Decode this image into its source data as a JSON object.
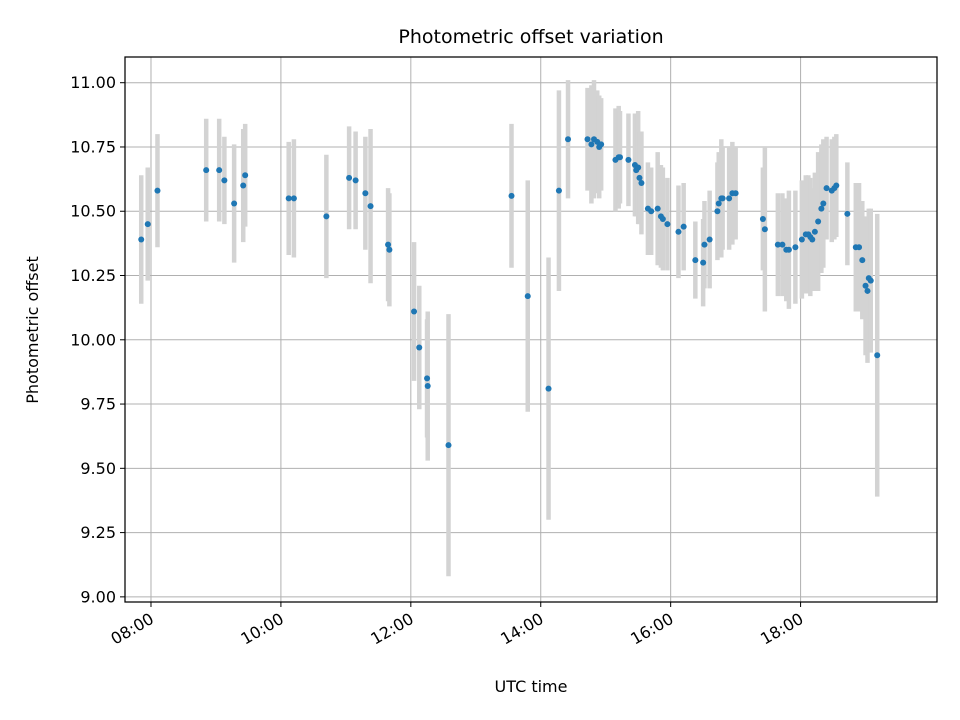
{
  "chart_data": {
    "type": "scatter",
    "title": "Photometric offset variation",
    "xlabel": "UTC time",
    "ylabel": "Photometric offset",
    "x_unit": "hours UTC",
    "xlim": [
      7.6,
      20.1
    ],
    "ylim": [
      8.98,
      11.1
    ],
    "x_ticks": [
      {
        "value": 8,
        "label": "08:00"
      },
      {
        "value": 10,
        "label": "10:00"
      },
      {
        "value": 12,
        "label": "12:00"
      },
      {
        "value": 14,
        "label": "14:00"
      },
      {
        "value": 16,
        "label": "16:00"
      },
      {
        "value": 18,
        "label": "18:00"
      }
    ],
    "y_ticks": [
      {
        "value": 9.0,
        "label": "9.00"
      },
      {
        "value": 9.25,
        "label": "9.25"
      },
      {
        "value": 9.5,
        "label": "9.50"
      },
      {
        "value": 9.75,
        "label": "9.75"
      },
      {
        "value": 10.0,
        "label": "10.00"
      },
      {
        "value": 10.25,
        "label": "10.25"
      },
      {
        "value": 10.5,
        "label": "10.50"
      },
      {
        "value": 10.75,
        "label": "10.75"
      },
      {
        "value": 11.0,
        "label": "11.00"
      }
    ],
    "grid": true,
    "colors": {
      "point": "#1f77b4",
      "errorbar": "#d3d3d3",
      "grid": "#b0b0b0",
      "axis": "#000000"
    },
    "series": [
      {
        "points": [
          [
            7.85,
            10.39,
            0.25
          ],
          [
            7.95,
            10.45,
            0.22
          ],
          [
            8.1,
            10.58,
            0.22
          ],
          [
            8.85,
            10.66,
            0.2
          ],
          [
            9.05,
            10.66,
            0.2
          ],
          [
            9.13,
            10.62,
            0.17
          ],
          [
            9.28,
            10.53,
            0.23
          ],
          [
            9.42,
            10.6,
            0.22
          ],
          [
            9.45,
            10.64,
            0.2
          ],
          [
            10.12,
            10.55,
            0.22
          ],
          [
            10.2,
            10.55,
            0.23
          ],
          [
            10.7,
            10.48,
            0.24
          ],
          [
            11.05,
            10.63,
            0.2
          ],
          [
            11.15,
            10.62,
            0.19
          ],
          [
            11.3,
            10.57,
            0.22
          ],
          [
            11.38,
            10.52,
            0.3
          ],
          [
            11.65,
            10.37,
            0.22
          ],
          [
            11.67,
            10.35,
            0.22
          ],
          [
            12.05,
            10.11,
            0.27
          ],
          [
            12.13,
            9.97,
            0.24
          ],
          [
            12.25,
            9.85,
            0.23
          ],
          [
            12.26,
            9.82,
            0.29
          ],
          [
            12.58,
            9.59,
            0.51
          ],
          [
            13.55,
            10.56,
            0.28
          ],
          [
            13.8,
            10.17,
            0.45
          ],
          [
            14.12,
            9.81,
            0.51
          ],
          [
            14.28,
            10.58,
            0.39
          ],
          [
            14.42,
            10.78,
            0.23
          ],
          [
            14.72,
            10.78,
            0.2
          ],
          [
            14.78,
            10.76,
            0.23
          ],
          [
            14.82,
            10.78,
            0.23
          ],
          [
            14.87,
            10.77,
            0.2
          ],
          [
            14.9,
            10.75,
            0.2
          ],
          [
            14.93,
            10.76,
            0.18
          ],
          [
            15.15,
            10.7,
            0.2
          ],
          [
            15.2,
            10.71,
            0.2
          ],
          [
            15.22,
            10.71,
            0.18
          ],
          [
            15.35,
            10.7,
            0.18
          ],
          [
            15.45,
            10.68,
            0.2
          ],
          [
            15.47,
            10.66,
            0.18
          ],
          [
            15.5,
            10.67,
            0.22
          ],
          [
            15.52,
            10.63,
            0.18
          ],
          [
            15.55,
            10.61,
            0.2
          ],
          [
            15.65,
            10.51,
            0.18
          ],
          [
            15.7,
            10.5,
            0.17
          ],
          [
            15.8,
            10.51,
            0.22
          ],
          [
            15.85,
            10.48,
            0.2
          ],
          [
            15.88,
            10.47,
            0.2
          ],
          [
            15.95,
            10.45,
            0.18
          ],
          [
            16.12,
            10.42,
            0.18
          ],
          [
            16.2,
            10.44,
            0.17
          ],
          [
            16.38,
            10.31,
            0.15
          ],
          [
            16.5,
            10.3,
            0.17
          ],
          [
            16.52,
            10.37,
            0.17
          ],
          [
            16.6,
            10.39,
            0.19
          ],
          [
            16.72,
            10.5,
            0.19
          ],
          [
            16.74,
            10.53,
            0.2
          ],
          [
            16.78,
            10.55,
            0.23
          ],
          [
            16.8,
            10.55,
            0.2
          ],
          [
            16.9,
            10.55,
            0.2
          ],
          [
            16.95,
            10.57,
            0.2
          ],
          [
            17.0,
            10.57,
            0.18
          ],
          [
            17.42,
            10.47,
            0.2
          ],
          [
            17.45,
            10.43,
            0.32
          ],
          [
            17.65,
            10.37,
            0.2
          ],
          [
            17.72,
            10.37,
            0.2
          ],
          [
            17.78,
            10.35,
            0.2
          ],
          [
            17.82,
            10.35,
            0.23
          ],
          [
            17.92,
            10.36,
            0.22
          ],
          [
            18.02,
            10.39,
            0.23
          ],
          [
            18.08,
            10.41,
            0.23
          ],
          [
            18.12,
            10.41,
            0.23
          ],
          [
            18.15,
            10.4,
            0.23
          ],
          [
            18.18,
            10.39,
            0.2
          ],
          [
            18.22,
            10.42,
            0.23
          ],
          [
            18.27,
            10.46,
            0.27
          ],
          [
            18.32,
            10.51,
            0.25
          ],
          [
            18.35,
            10.53,
            0.25
          ],
          [
            18.4,
            10.59,
            0.2
          ],
          [
            18.48,
            10.58,
            0.2
          ],
          [
            18.52,
            10.59,
            0.2
          ],
          [
            18.55,
            10.6,
            0.2
          ],
          [
            18.72,
            10.49,
            0.2
          ],
          [
            18.85,
            10.36,
            0.25
          ],
          [
            18.9,
            10.36,
            0.25
          ],
          [
            18.95,
            10.31,
            0.23
          ],
          [
            19.0,
            10.21,
            0.27
          ],
          [
            19.03,
            10.19,
            0.28
          ],
          [
            19.05,
            10.24,
            0.27
          ],
          [
            19.08,
            10.23,
            0.28
          ],
          [
            19.18,
            9.94,
            0.55
          ]
        ]
      }
    ]
  }
}
